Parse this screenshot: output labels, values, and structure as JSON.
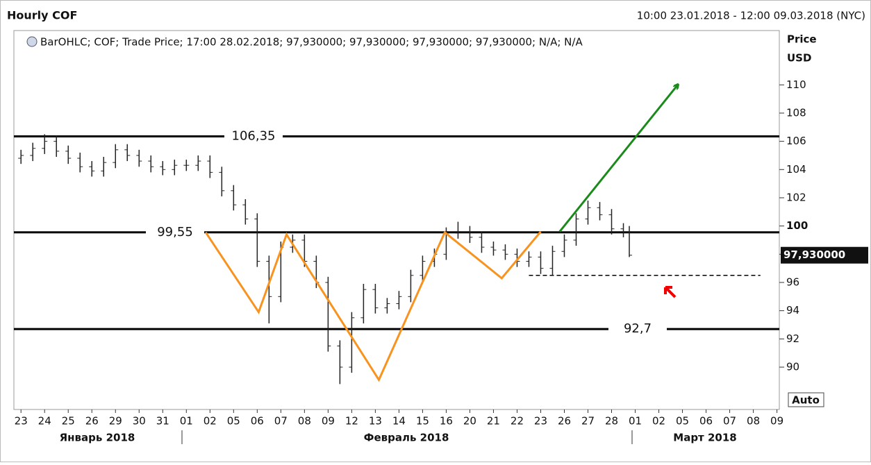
{
  "header": {
    "title": "Hourly COF",
    "range": "10:00 23.01.2018 - 12:00 09.03.2018 (NYC)"
  },
  "chart_data": {
    "type": "ohlc",
    "legend": "BarOHLC; COF; Trade Price; 17:00 28.02.2018; 97,930000; 97,930000; 97,930000; 97,930000; N/A; N/A",
    "y_label": [
      "Price",
      "USD"
    ],
    "button": "Auto",
    "months": [
      "Январь 2018",
      "Февраль 2018",
      "Март 2018"
    ],
    "xlim": [
      -0.3,
      32.1
    ],
    "xticks": [
      {
        "value": 0,
        "label": "23"
      },
      {
        "value": 1,
        "label": "24"
      },
      {
        "value": 2,
        "label": "25"
      },
      {
        "value": 3,
        "label": "26"
      },
      {
        "value": 4,
        "label": "29"
      },
      {
        "value": 5,
        "label": "30"
      },
      {
        "value": 6,
        "label": "31"
      },
      {
        "value": 7,
        "label": "01"
      },
      {
        "value": 8,
        "label": "02"
      },
      {
        "value": 9,
        "label": "05"
      },
      {
        "value": 10,
        "label": "06"
      },
      {
        "value": 11,
        "label": "07"
      },
      {
        "value": 12,
        "label": "08"
      },
      {
        "value": 13,
        "label": "09"
      },
      {
        "value": 14,
        "label": "12"
      },
      {
        "value": 15,
        "label": "13"
      },
      {
        "value": 16,
        "label": "14"
      },
      {
        "value": 17,
        "label": "15"
      },
      {
        "value": 18,
        "label": "16"
      },
      {
        "value": 19,
        "label": "20"
      },
      {
        "value": 20,
        "label": "21"
      },
      {
        "value": 21,
        "label": "22"
      },
      {
        "value": 22,
        "label": "23"
      },
      {
        "value": 23,
        "label": "26"
      },
      {
        "value": 24,
        "label": "27"
      },
      {
        "value": 25,
        "label": "28"
      },
      {
        "value": 26,
        "label": "01"
      },
      {
        "value": 27,
        "label": "02"
      },
      {
        "value": 28,
        "label": "05"
      },
      {
        "value": 29,
        "label": "06"
      },
      {
        "value": 30,
        "label": "07"
      },
      {
        "value": 31,
        "label": "08"
      },
      {
        "value": 32,
        "label": "09"
      }
    ],
    "ylim": [
      87,
      113.8
    ],
    "yticks": [
      90,
      92,
      94,
      96,
      98,
      100,
      102,
      104,
      106,
      108,
      110
    ],
    "last": {
      "value": 97.93,
      "label": "97,930000"
    },
    "series": [
      {
        "name": "COF",
        "color": "#222222",
        "x": [
          0,
          0.5,
          1,
          1.5,
          2,
          2.5,
          3,
          3.5,
          4,
          4.5,
          5,
          5.5,
          6,
          6.5,
          7,
          7.5,
          8,
          8.5,
          9,
          9.5,
          10,
          10.5,
          11,
          11.5,
          12,
          12.5,
          13,
          13.5,
          14,
          14.5,
          15,
          15.5,
          16,
          16.5,
          17,
          17.5,
          18,
          18.5,
          19,
          19.5,
          20,
          20.5,
          21,
          21.5,
          22,
          22.5,
          23,
          23.5,
          24,
          24.5,
          25,
          25.5,
          25.75
        ],
        "open": [
          104.8,
          105.0,
          105.5,
          106.0,
          105.3,
          104.8,
          104.2,
          103.9,
          104.5,
          105.4,
          105.0,
          104.6,
          104.2,
          104.0,
          104.3,
          104.3,
          104.6,
          103.8,
          102.5,
          101.5,
          100.5,
          97.5,
          95.0,
          98.5,
          99.0,
          97.5,
          96.0,
          91.5,
          90.0,
          93.5,
          95.5,
          94.2,
          94.5,
          95.0,
          96.5,
          97.5,
          98.0,
          99.5,
          99.6,
          99.2,
          98.5,
          98.3,
          98.0,
          97.5,
          97.8,
          97.0,
          98.2,
          99.0,
          100.5,
          101.3,
          100.8,
          99.8,
          99.6
        ],
        "high": [
          105.4,
          105.9,
          106.5,
          106.4,
          105.7,
          105.2,
          104.6,
          104.9,
          105.8,
          105.8,
          105.4,
          105.0,
          104.6,
          104.7,
          104.7,
          105.0,
          105.0,
          104.2,
          102.9,
          101.9,
          100.9,
          97.9,
          98.9,
          99.4,
          99.4,
          97.9,
          96.4,
          91.9,
          93.9,
          95.9,
          95.9,
          94.9,
          95.4,
          96.9,
          97.9,
          98.4,
          99.9,
          100.3,
          100.0,
          99.6,
          98.9,
          98.7,
          98.4,
          98.2,
          98.2,
          98.6,
          99.4,
          100.9,
          101.8,
          101.7,
          101.2,
          100.2,
          100.0
        ],
        "low": [
          104.4,
          104.6,
          105.1,
          104.9,
          104.4,
          103.8,
          103.5,
          103.5,
          104.1,
          104.6,
          104.2,
          103.8,
          103.6,
          103.6,
          103.9,
          103.9,
          103.4,
          102.1,
          101.1,
          100.1,
          97.1,
          93.1,
          94.6,
          98.1,
          97.1,
          95.6,
          91.1,
          88.8,
          89.6,
          93.1,
          93.8,
          93.8,
          94.1,
          94.6,
          96.1,
          97.1,
          97.6,
          99.1,
          98.8,
          98.1,
          97.9,
          97.6,
          97.1,
          97.1,
          96.6,
          96.5,
          97.8,
          98.6,
          100.1,
          100.4,
          99.4,
          99.2,
          97.8
        ],
        "close": [
          105.0,
          105.5,
          106.0,
          105.3,
          104.8,
          104.2,
          103.9,
          104.5,
          105.4,
          105.0,
          104.6,
          104.2,
          104.0,
          104.3,
          104.3,
          104.6,
          103.8,
          102.5,
          101.5,
          100.5,
          97.5,
          95.0,
          98.5,
          99.0,
          97.5,
          96.0,
          91.5,
          90.0,
          93.5,
          95.5,
          94.2,
          94.5,
          95.0,
          96.5,
          97.5,
          98.0,
          99.5,
          99.6,
          99.2,
          98.5,
          98.3,
          98.0,
          97.5,
          97.8,
          97.0,
          98.2,
          99.0,
          100.5,
          101.3,
          100.8,
          99.8,
          99.6,
          97.93
        ]
      }
    ],
    "levels": [
      {
        "value": 106.35,
        "label": "106,35"
      },
      {
        "value": 99.55,
        "label": "99,55"
      },
      {
        "value": 92.7,
        "label": "92,7"
      }
    ],
    "pattern": {
      "color": "#f7931e",
      "x": [
        7.82,
        10.06,
        11.24,
        15.15,
        17.94,
        20.35,
        22.0
      ],
      "y": [
        99.55,
        93.9,
        99.4,
        89.1,
        99.55,
        96.3,
        99.6
      ]
    },
    "arrow": {
      "color": "#1a8a1a",
      "x": [
        22.8,
        27.8
      ],
      "y": [
        99.6,
        110
      ]
    },
    "support": {
      "x": [
        21.5,
        31.3
      ],
      "value": 96.5
    }
  }
}
